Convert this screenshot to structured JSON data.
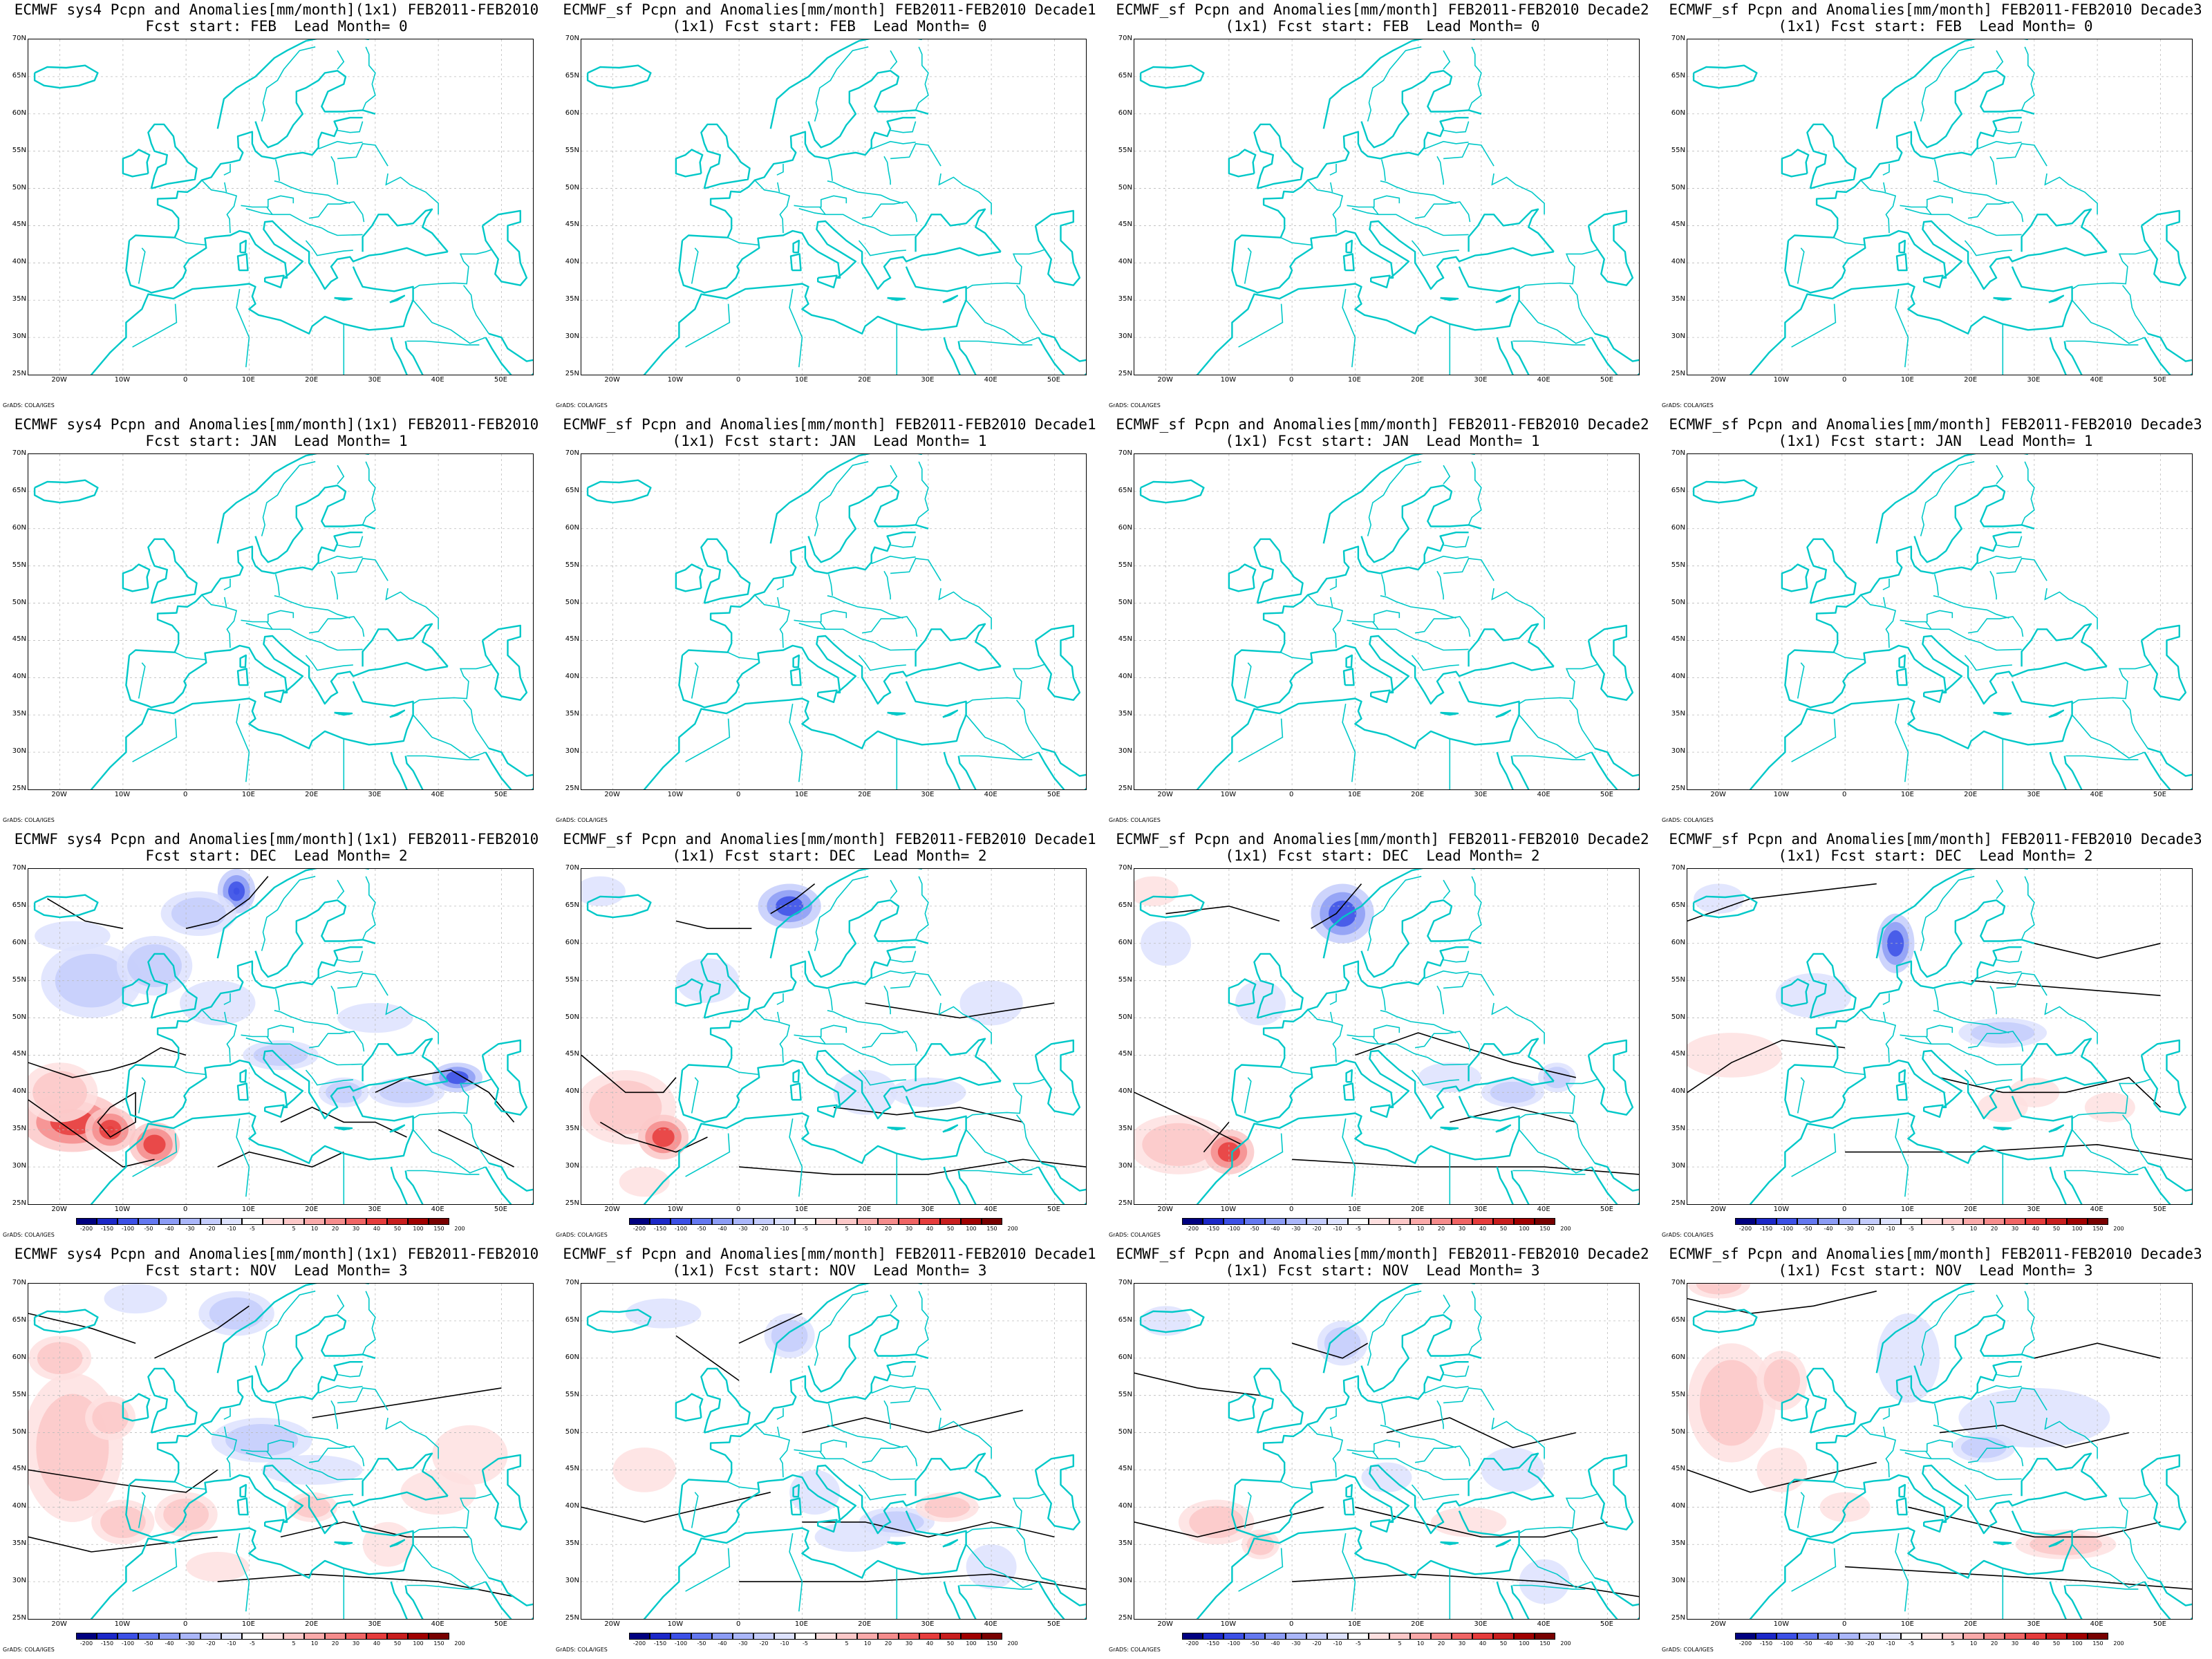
{
  "titles": {
    "sys4": "ECMWF sys4 Pcpn and Anomalies[mm/month](1x1) FEB2011-FEB2010",
    "d1": "ECMWF_sf Pcpn and Anomalies[mm/month] FEB2011-FEB2010 Decade1",
    "d2": "ECMWF_sf Pcpn and Anomalies[mm/month] FEB2011-FEB2010 Decade2",
    "d3": "ECMWF_sf Pcpn and Anomalies[mm/month] FEB2011-FEB2010 Decade3"
  },
  "subtitles": {
    "r0": "Fcst start: FEB  Lead Month= 0",
    "r0b": "(1x1) Fcst start: FEB  Lead Month= 0",
    "r1": "Fcst start: JAN  Lead Month= 1",
    "r1b": "(1x1) Fcst start: JAN  Lead Month= 1",
    "r2": "Fcst start: DEC  Lead Month= 2",
    "r2b": "(1x1) Fcst start: DEC  Lead Month= 2",
    "r3": "Fcst start: NOV  Lead Month= 3",
    "r3b": "(1x1) Fcst start: NOV  Lead Month= 3"
  },
  "lat_labels": [
    "70N",
    "65N",
    "60N",
    "55N",
    "50N",
    "45N",
    "40N",
    "35N",
    "30N",
    "25N"
  ],
  "lon_labels": [
    "20W",
    "10W",
    "0",
    "10E",
    "20E",
    "30E",
    "40E",
    "50E"
  ],
  "credit": "GrADS: COLA/IGES",
  "colorbar": {
    "labels": [
      "-200",
      "-150",
      "-100",
      "-50",
      "-40",
      "-30",
      "-20",
      "-10",
      "-5",
      "5",
      "10",
      "20",
      "30",
      "40",
      "50",
      "100",
      "150",
      "200"
    ],
    "colors": [
      "#000080",
      "#1c28c8",
      "#3c50e6",
      "#6478f0",
      "#8c9cf5",
      "#aab6fa",
      "#c4ccfc",
      "#dde2fe",
      "#ffffff",
      "#fee0e0",
      "#fcc8c8",
      "#faaaaa",
      "#f58c8c",
      "#f06464",
      "#e63c3c",
      "#c81e1e",
      "#a00000",
      "#780000"
    ]
  },
  "colors": {
    "coast": "#00c8c8",
    "contour": "#000000",
    "pos_anom": "#f06464",
    "neg_anom": "#6478f0"
  },
  "panels": [
    {
      "row": 0,
      "col": 0,
      "title": "sys4",
      "sub": "r0",
      "has_data": false
    },
    {
      "row": 0,
      "col": 1,
      "title": "d1",
      "sub": "r0b",
      "has_data": false
    },
    {
      "row": 0,
      "col": 2,
      "title": "d2",
      "sub": "r0b",
      "has_data": false
    },
    {
      "row": 0,
      "col": 3,
      "title": "d3",
      "sub": "r0b",
      "has_data": false
    },
    {
      "row": 1,
      "col": 0,
      "title": "sys4",
      "sub": "r1",
      "has_data": false
    },
    {
      "row": 1,
      "col": 1,
      "title": "d1",
      "sub": "r1b",
      "has_data": false
    },
    {
      "row": 1,
      "col": 2,
      "title": "d2",
      "sub": "r1b",
      "has_data": false
    },
    {
      "row": 1,
      "col": 3,
      "title": "d3",
      "sub": "r1b",
      "has_data": false
    },
    {
      "row": 2,
      "col": 0,
      "title": "sys4",
      "sub": "r2",
      "has_data": true
    },
    {
      "row": 2,
      "col": 1,
      "title": "d1",
      "sub": "r2b",
      "has_data": true
    },
    {
      "row": 2,
      "col": 2,
      "title": "d2",
      "sub": "r2b",
      "has_data": true
    },
    {
      "row": 2,
      "col": 3,
      "title": "d3",
      "sub": "r2b",
      "has_data": true
    },
    {
      "row": 3,
      "col": 0,
      "title": "sys4",
      "sub": "r3",
      "has_data": true
    },
    {
      "row": 3,
      "col": 1,
      "title": "d1",
      "sub": "r3b",
      "has_data": true
    },
    {
      "row": 3,
      "col": 2,
      "title": "d2",
      "sub": "r3b",
      "has_data": true
    },
    {
      "row": 3,
      "col": 3,
      "title": "d3",
      "sub": "r3b",
      "has_data": true
    }
  ]
}
